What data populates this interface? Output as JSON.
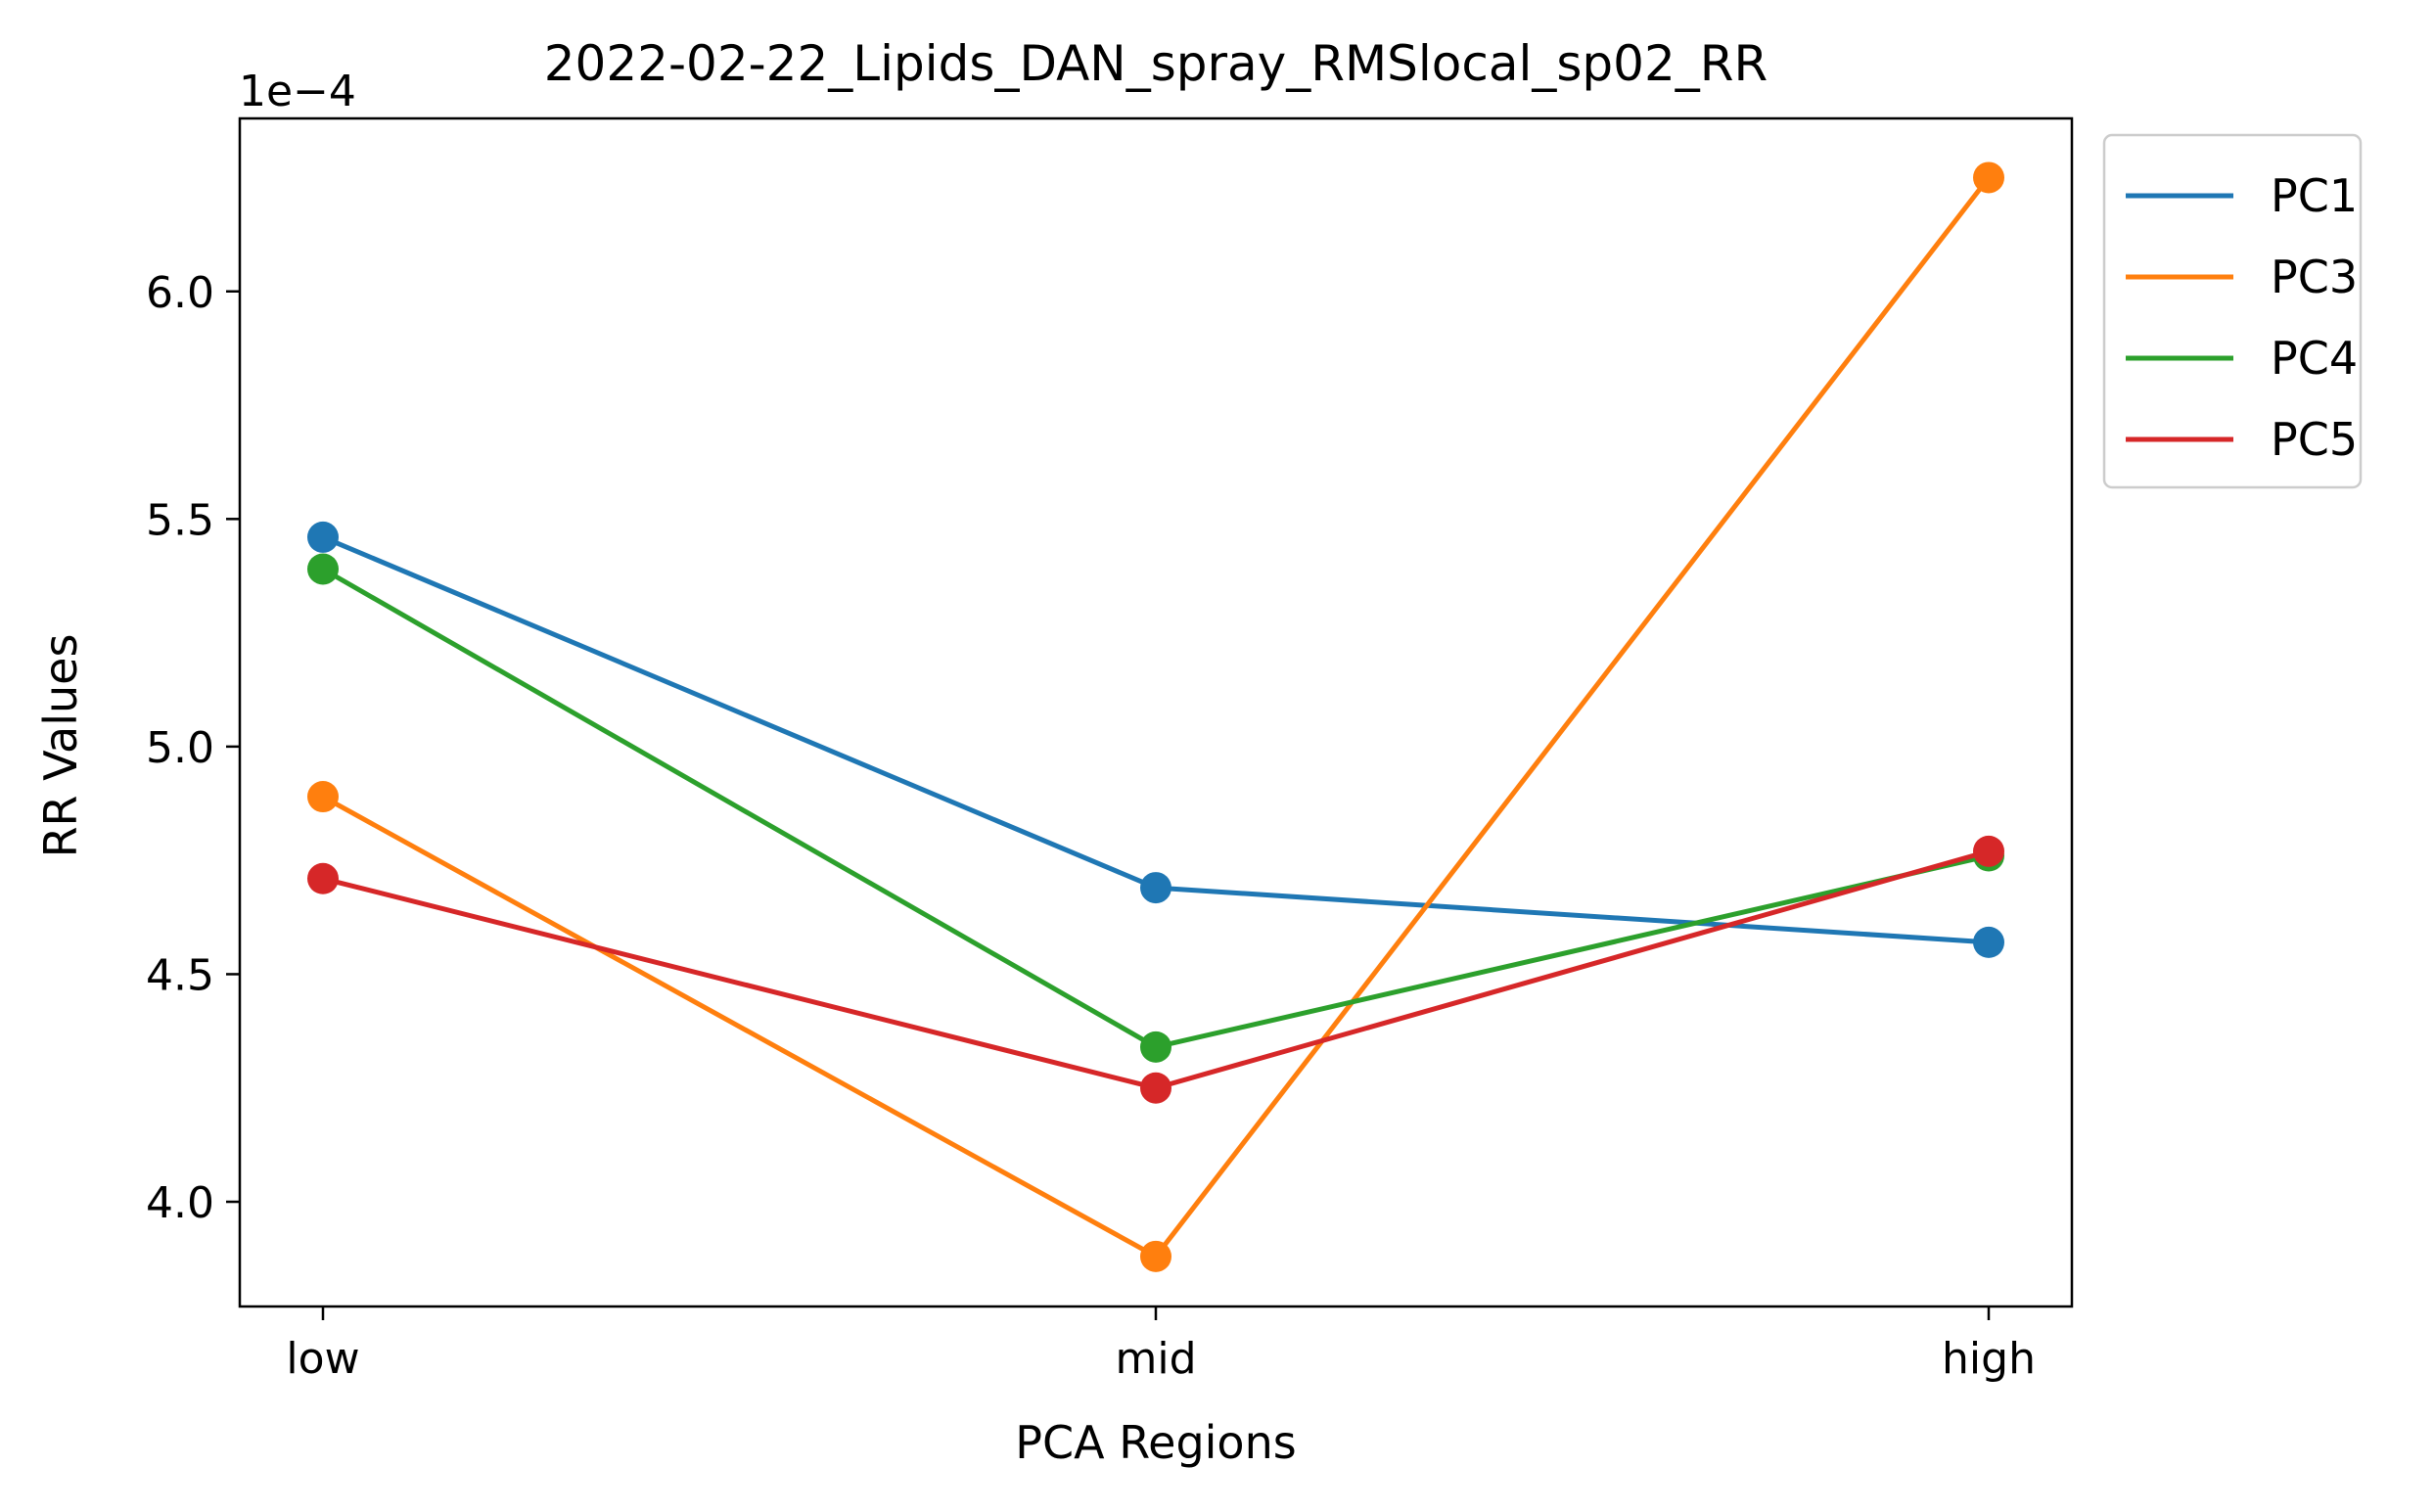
{
  "chart_data": {
    "type": "line",
    "title": "2022-02-22_Lipids_DAN_spray_RMSlocal_sp02_RR",
    "xlabel": "PCA Regions",
    "ylabel": "RR Values",
    "y_offset_label": "1e−4",
    "categories": [
      "low",
      "mid",
      "high"
    ],
    "ylim": [
      3.77,
      6.38
    ],
    "y_ticks": [
      4.0,
      4.5,
      5.0,
      5.5,
      6.0
    ],
    "y_tick_labels": [
      "4.0",
      "4.5",
      "5.0",
      "5.5",
      "6.0"
    ],
    "grid": false,
    "legend_position": "outside-top-right",
    "series": [
      {
        "name": "PC1",
        "color": "#1f77b4",
        "values": [
          5.46,
          4.69,
          4.57
        ]
      },
      {
        "name": "PC3",
        "color": "#ff7f0e",
        "values": [
          4.89,
          3.88,
          6.25
        ]
      },
      {
        "name": "PC4",
        "color": "#2ca02c",
        "values": [
          5.39,
          4.34,
          4.76
        ]
      },
      {
        "name": "PC5",
        "color": "#d62728",
        "values": [
          4.71,
          4.25,
          4.77
        ]
      }
    ]
  }
}
